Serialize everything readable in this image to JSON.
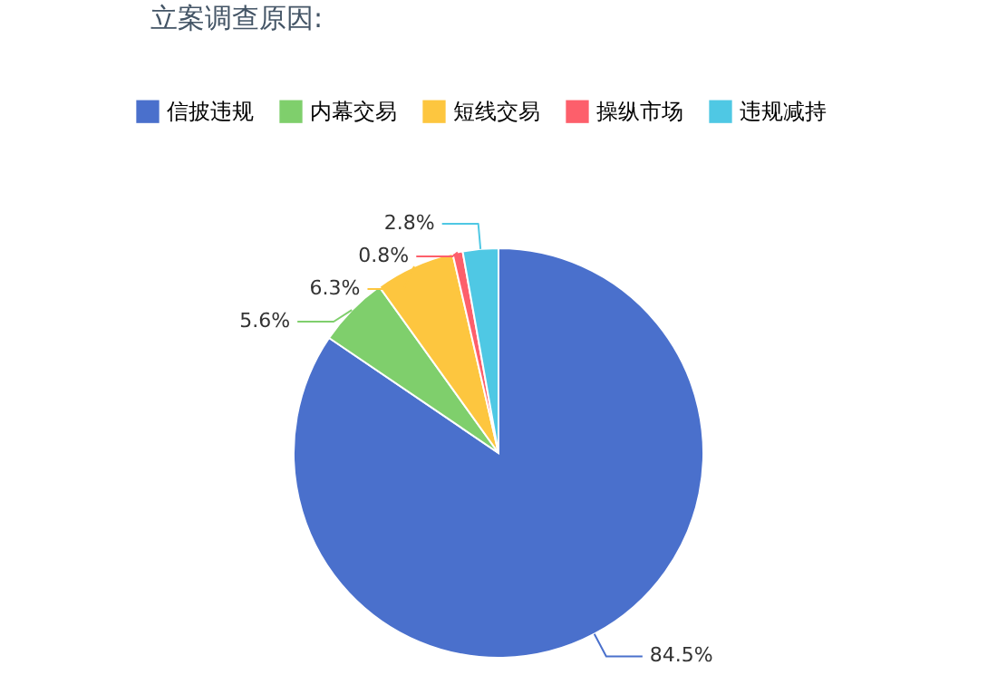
{
  "chart_data": {
    "type": "pie",
    "title": "立案调查原因:",
    "categories": [
      "信披违规",
      "内幕交易",
      "短线交易",
      "操纵市场",
      "违规减持"
    ],
    "values": [
      84.5,
      5.6,
      6.3,
      0.8,
      2.8
    ],
    "colors": [
      "#4a70cc",
      "#7fcf6c",
      "#fdc63f",
      "#fd5f6b",
      "#4fc8e4"
    ],
    "value_labels": [
      "84.5%",
      "5.6%",
      "6.3%",
      "0.8%",
      "2.8%"
    ],
    "legend": "top left"
  }
}
